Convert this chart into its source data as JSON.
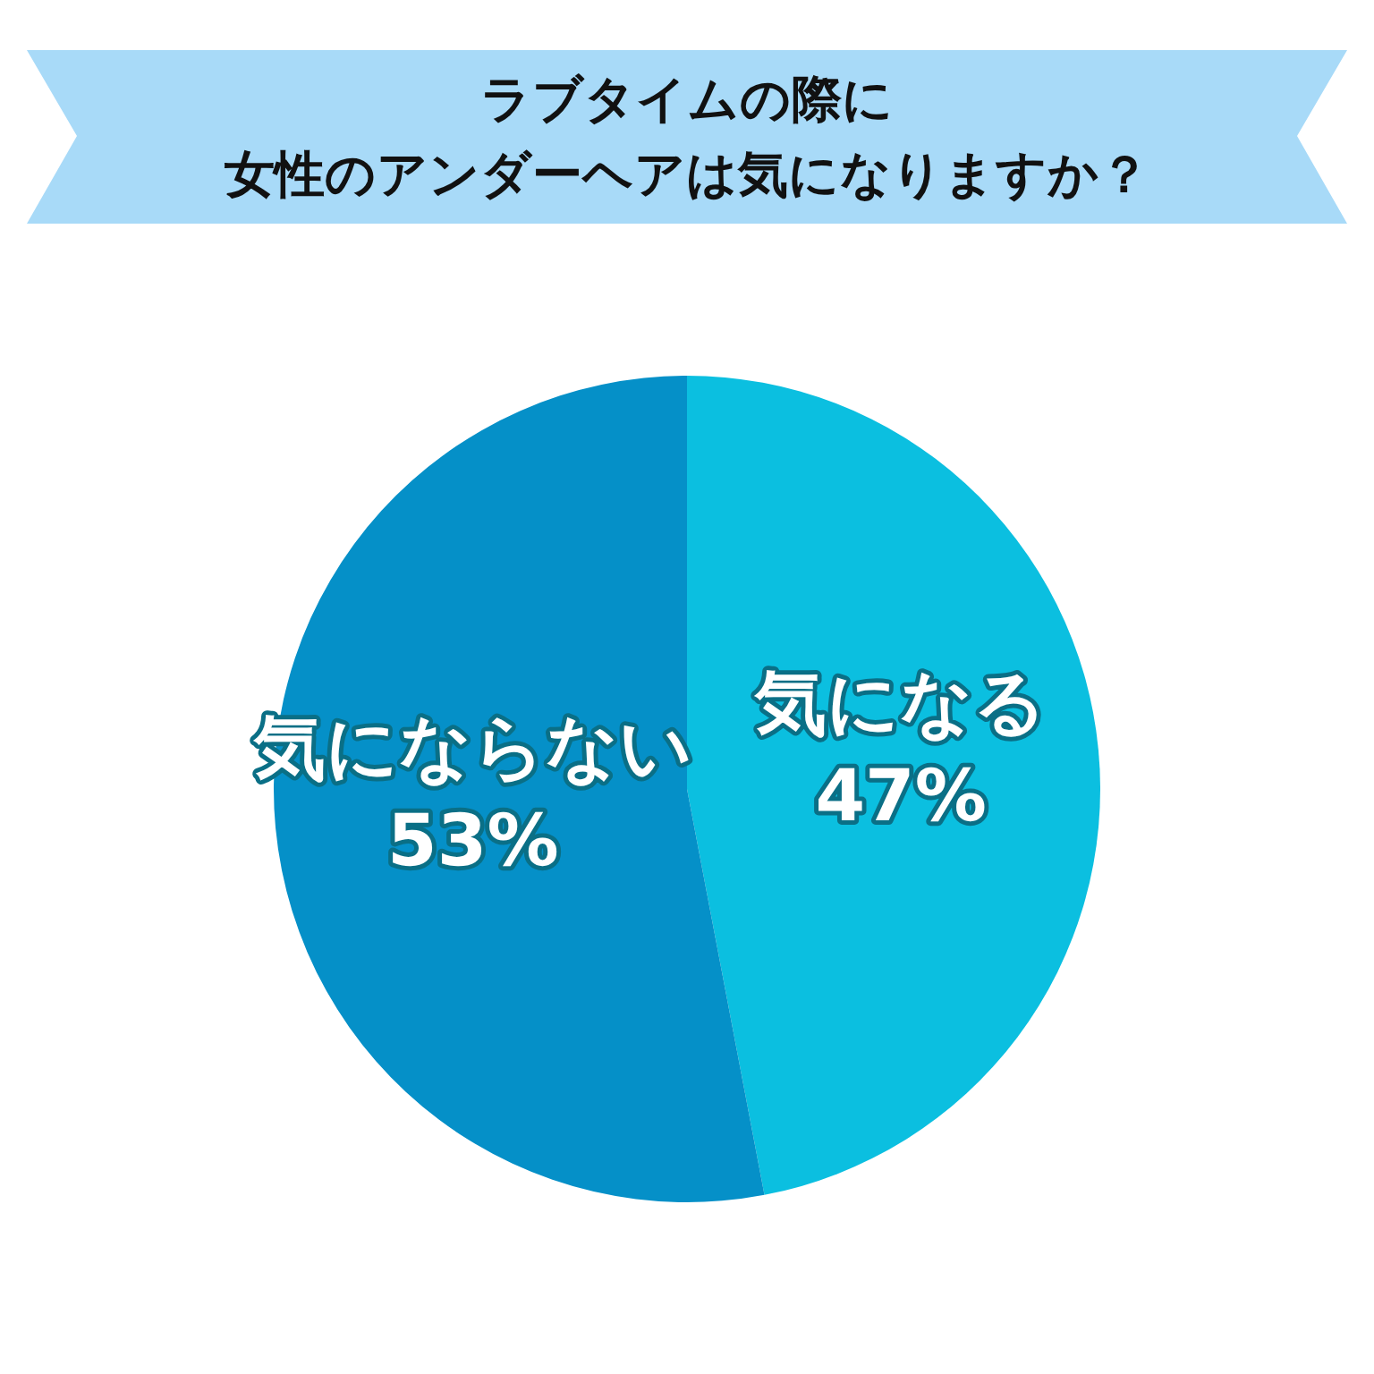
{
  "chart_data": {
    "type": "pie",
    "title": "ラブタイムの際に",
    "subtitle": "女性のアンダーヘアは気になりますか？",
    "categories": [
      "気になる",
      "気にならない"
    ],
    "values": [
      47,
      53
    ],
    "colors": [
      "#0bbfe0",
      "#0590c8"
    ],
    "value_labels": [
      "47%",
      "53%"
    ]
  }
}
